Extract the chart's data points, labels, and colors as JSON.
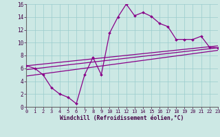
{
  "x": [
    0,
    1,
    2,
    3,
    4,
    5,
    6,
    7,
    8,
    9,
    10,
    11,
    12,
    13,
    14,
    15,
    16,
    17,
    18,
    19,
    20,
    21,
    22,
    23
  ],
  "y_main": [
    6.4,
    6.0,
    5.0,
    3.0,
    2.0,
    1.5,
    0.5,
    5.0,
    7.7,
    5.0,
    11.5,
    14.0,
    16.0,
    14.2,
    14.7,
    14.1,
    13.0,
    12.5,
    10.5,
    10.5,
    10.5,
    11.0,
    9.3,
    9.2
  ],
  "line1_x": [
    0,
    23
  ],
  "line1_y": [
    6.4,
    9.5
  ],
  "line2_x": [
    0,
    23
  ],
  "line2_y": [
    5.8,
    9.2
  ],
  "line3_x": [
    0,
    23
  ],
  "line3_y": [
    4.8,
    8.8
  ],
  "bg_color": "#cce8e4",
  "line_color": "#880088",
  "grid_color": "#99cccc",
  "xlabel": "Windchill (Refroidissement éolien,°C)",
  "xlim": [
    0,
    23
  ],
  "ylim": [
    0,
    16
  ],
  "yticks": [
    0,
    2,
    4,
    6,
    8,
    10,
    12,
    14,
    16
  ],
  "xticks": [
    0,
    1,
    2,
    3,
    4,
    5,
    6,
    7,
    8,
    9,
    10,
    11,
    12,
    13,
    14,
    15,
    16,
    17,
    18,
    19,
    20,
    21,
    22,
    23
  ]
}
